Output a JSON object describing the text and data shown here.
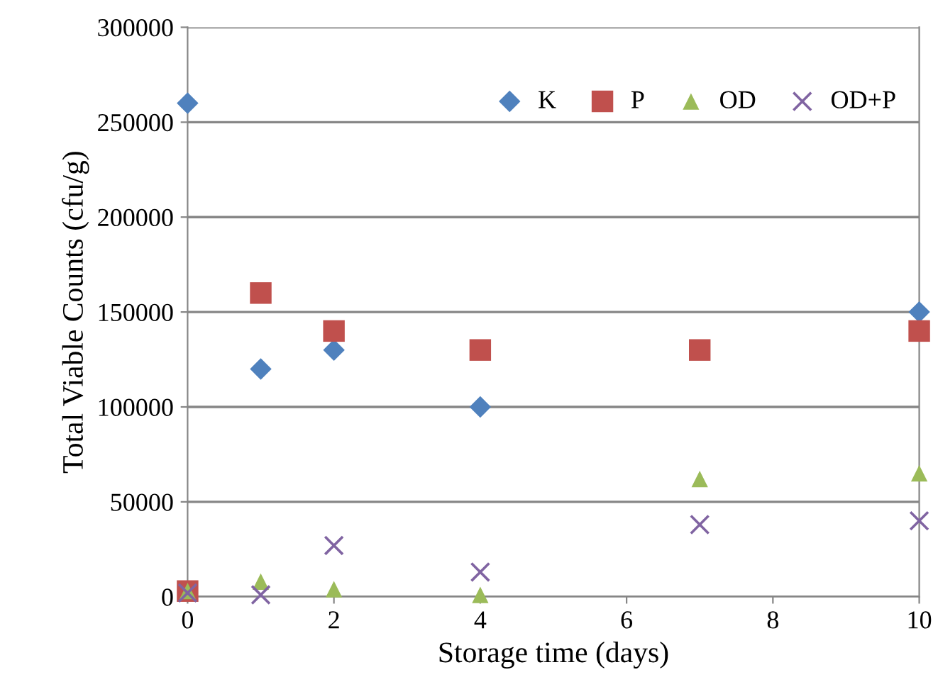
{
  "chart_data": {
    "type": "scatter",
    "xlabel": "Storage time (days)",
    "ylabel": "Total Viable Counts (cfu/g)",
    "x": [
      0,
      1,
      2,
      4,
      7,
      10
    ],
    "series": [
      {
        "name": "K",
        "color": "#4f81bd",
        "marker": "diamond",
        "values": [
          260000,
          120000,
          130000,
          100000,
          null,
          150000
        ]
      },
      {
        "name": "P",
        "color": "#c0504d",
        "marker": "square",
        "values": [
          3000,
          160000,
          140000,
          130000,
          130000,
          140000
        ]
      },
      {
        "name": "OD",
        "color": "#9bbb59",
        "marker": "triangle",
        "values": [
          3000,
          8000,
          4000,
          1000,
          62000,
          65000
        ]
      },
      {
        "name": "OD+P",
        "color": "#8064a2",
        "marker": "cross",
        "values": [
          2000,
          1000,
          27000,
          13000,
          38000,
          40000
        ]
      }
    ],
    "xlim": [
      0,
      10
    ],
    "xticks": [
      0,
      2,
      4,
      6,
      8,
      10
    ],
    "ylim": [
      0,
      300000
    ],
    "yticks": [
      0,
      50000,
      100000,
      150000,
      200000,
      250000,
      300000
    ],
    "grid": "y",
    "legend": "top right"
  }
}
